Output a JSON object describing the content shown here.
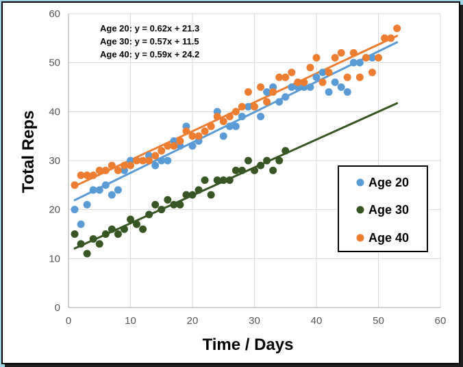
{
  "chart_data": {
    "type": "scatter",
    "xlabel": "Time / Days",
    "ylabel": "Total Reps",
    "xlim": [
      0,
      60
    ],
    "ylim": [
      0,
      60
    ],
    "xticks": [
      0,
      10,
      20,
      30,
      40,
      50,
      60
    ],
    "yticks": [
      0,
      10,
      20,
      30,
      40,
      50,
      60
    ],
    "grid": "horizontal and vertical",
    "legend_position": "right",
    "trendline_equations": [
      "Age 20: y = 0.62x + 21.3",
      "Age 30: y = 0.57x + 11.5",
      "Age 40: y = 0.59x + 24.2"
    ],
    "series": [
      {
        "name": "Age 20",
        "color": "#5b9bd5",
        "trend": {
          "slope": 0.62,
          "intercept": 21.3,
          "x_range": [
            1,
            53
          ]
        },
        "points": [
          [
            1,
            20
          ],
          [
            2,
            17
          ],
          [
            3,
            21
          ],
          [
            4,
            24
          ],
          [
            5,
            24
          ],
          [
            6,
            25
          ],
          [
            7,
            23
          ],
          [
            8,
            24
          ],
          [
            9,
            28
          ],
          [
            10,
            30
          ],
          [
            11,
            30
          ],
          [
            12,
            30
          ],
          [
            13,
            31
          ],
          [
            14,
            29
          ],
          [
            15,
            30
          ],
          [
            16,
            30
          ],
          [
            17,
            34
          ],
          [
            18,
            33
          ],
          [
            19,
            37
          ],
          [
            20,
            33
          ],
          [
            21,
            34
          ],
          [
            24,
            40
          ],
          [
            25,
            35
          ],
          [
            26,
            37
          ],
          [
            27,
            37
          ],
          [
            28,
            39
          ],
          [
            29,
            41
          ],
          [
            31,
            39
          ],
          [
            32,
            44
          ],
          [
            33,
            45
          ],
          [
            34,
            42
          ],
          [
            35,
            43
          ],
          [
            36,
            45
          ],
          [
            37,
            45
          ],
          [
            38,
            45
          ],
          [
            39,
            45
          ],
          [
            40,
            47
          ],
          [
            41,
            48
          ],
          [
            42,
            44
          ],
          [
            43,
            46
          ],
          [
            44,
            45
          ],
          [
            45,
            44
          ],
          [
            46,
            50
          ],
          [
            47,
            50
          ],
          [
            48,
            51
          ],
          [
            49,
            51
          ]
        ]
      },
      {
        "name": "Age 30",
        "color": "#375623",
        "trend": {
          "slope": 0.57,
          "intercept": 11.5,
          "x_range": [
            1,
            53
          ]
        },
        "points": [
          [
            1,
            15
          ],
          [
            2,
            13
          ],
          [
            3,
            11
          ],
          [
            4,
            14
          ],
          [
            5,
            13
          ],
          [
            6,
            15
          ],
          [
            7,
            16
          ],
          [
            8,
            15
          ],
          [
            9,
            16
          ],
          [
            10,
            18
          ],
          [
            11,
            17
          ],
          [
            12,
            16
          ],
          [
            13,
            19
          ],
          [
            14,
            21
          ],
          [
            15,
            20
          ],
          [
            16,
            22
          ],
          [
            17,
            21
          ],
          [
            18,
            21
          ],
          [
            19,
            23
          ],
          [
            20,
            23
          ],
          [
            21,
            24
          ],
          [
            22,
            26
          ],
          [
            23,
            23
          ],
          [
            24,
            26
          ],
          [
            25,
            26
          ],
          [
            26,
            26
          ],
          [
            27,
            28
          ],
          [
            28,
            28
          ],
          [
            29,
            30
          ],
          [
            30,
            28
          ],
          [
            31,
            29
          ],
          [
            32,
            30
          ],
          [
            33,
            28
          ],
          [
            34,
            30
          ],
          [
            35,
            32
          ]
        ]
      },
      {
        "name": "Age 40",
        "color": "#ed7d31",
        "trend": {
          "slope": 0.59,
          "intercept": 24.2,
          "x_range": [
            1,
            53
          ]
        },
        "points": [
          [
            1,
            25
          ],
          [
            2,
            27
          ],
          [
            3,
            27
          ],
          [
            4,
            27
          ],
          [
            5,
            28
          ],
          [
            6,
            28
          ],
          [
            7,
            29
          ],
          [
            8,
            28
          ],
          [
            9,
            29
          ],
          [
            10,
            29
          ],
          [
            11,
            30
          ],
          [
            12,
            30
          ],
          [
            13,
            30
          ],
          [
            14,
            31
          ],
          [
            15,
            32
          ],
          [
            16,
            33
          ],
          [
            17,
            33
          ],
          [
            18,
            34
          ],
          [
            19,
            36
          ],
          [
            20,
            35
          ],
          [
            21,
            35
          ],
          [
            22,
            36
          ],
          [
            23,
            37
          ],
          [
            24,
            39
          ],
          [
            25,
            38
          ],
          [
            26,
            39
          ],
          [
            27,
            40
          ],
          [
            28,
            41
          ],
          [
            29,
            44
          ],
          [
            30,
            41
          ],
          [
            31,
            45
          ],
          [
            32,
            42
          ],
          [
            33,
            44
          ],
          [
            34,
            47
          ],
          [
            35,
            47
          ],
          [
            36,
            48
          ],
          [
            37,
            46
          ],
          [
            38,
            46
          ],
          [
            39,
            49
          ],
          [
            40,
            51
          ],
          [
            41,
            46
          ],
          [
            42,
            48
          ],
          [
            43,
            51
          ],
          [
            44,
            52
          ],
          [
            45,
            47
          ],
          [
            46,
            52
          ],
          [
            47,
            47
          ],
          [
            48,
            51
          ],
          [
            49,
            48
          ],
          [
            50,
            51
          ],
          [
            51,
            55
          ],
          [
            52,
            55
          ],
          [
            53,
            57
          ]
        ]
      }
    ]
  }
}
